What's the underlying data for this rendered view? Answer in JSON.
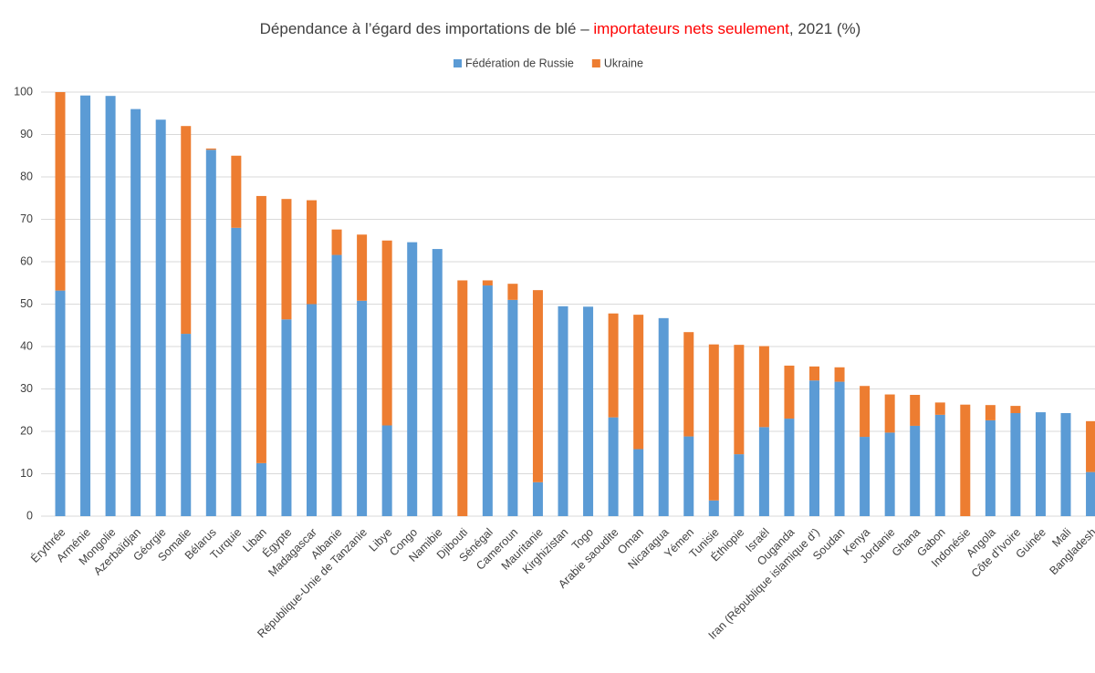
{
  "chart_data": {
    "type": "stacked_bar",
    "title": [
      "Dépendance à l’égard des importations de blé – ",
      "importateurs nets seulement",
      ", 2021 (%)"
    ],
    "categories": [
      "Érythrée",
      "Arménie",
      "Mongolie",
      "Azerbaïdjan",
      "Géorgie",
      "Somalie",
      "Bélarus",
      "Turquie",
      "Liban",
      "Égypte",
      "Madagascar",
      "Albanie",
      "République-Unie de Tanzanie",
      "Libye",
      "Congo",
      "Namibie",
      "Djibouti",
      "Sénégal",
      "Cameroun",
      "Mauritanie",
      "Kirghizistan",
      "Togo",
      "Arabie saoudite",
      "Oman",
      "Nicaragua",
      "Yémen",
      "Tunisie",
      "Éthiopie",
      "Israël",
      "Ouganda",
      "Iran (République islamique d’)",
      "Soudan",
      "Kenya",
      "Jordanie",
      "Ghana",
      "Gabon",
      "Indonésie",
      "Angola",
      "Côte d’Ivoire",
      "Guinée",
      "Mali",
      "Bangladesh"
    ],
    "series": [
      {
        "name": "Fédération de Russie",
        "color": "#5b9bd5",
        "values": [
          53.2,
          99.2,
          99.1,
          96,
          93.5,
          43,
          86.4,
          68,
          12.5,
          46.4,
          50,
          61.6,
          50.8,
          21.4,
          64.6,
          63,
          0,
          54.4,
          51,
          8,
          49.5,
          49.4,
          23.3,
          15.8,
          46.7,
          18.8,
          3.7,
          14.6,
          21,
          23,
          32,
          31.7,
          18.7,
          19.7,
          21.3,
          23.9,
          0,
          22.6,
          24.3,
          24.5,
          24.3,
          10.4
        ]
      },
      {
        "name": "Ukraine",
        "color": "#ed7d31",
        "values": [
          46.8,
          0,
          0,
          0,
          0,
          49,
          0.3,
          17,
          63,
          28.4,
          24.5,
          6,
          15.6,
          43.6,
          0,
          0,
          55.6,
          1.2,
          3.8,
          45.3,
          0,
          0,
          24.5,
          31.7,
          0,
          24.6,
          36.8,
          25.8,
          19.1,
          12.5,
          3.3,
          3.4,
          12,
          9,
          7.3,
          2.9,
          26.3,
          3.6,
          1.7,
          0,
          0,
          12
        ]
      }
    ],
    "ylim": [
      0,
      100
    ],
    "yticks": [
      0,
      10,
      20,
      30,
      40,
      50,
      60,
      70,
      80,
      90,
      100
    ],
    "grid": true,
    "legend": "top"
  }
}
